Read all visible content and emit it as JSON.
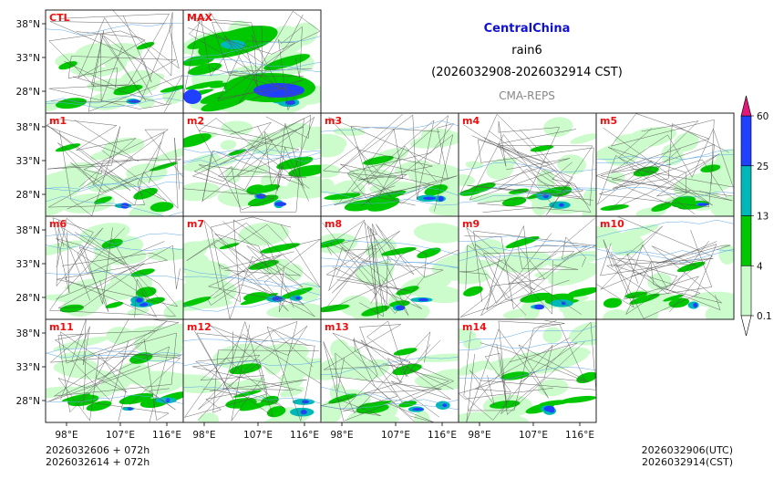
{
  "header": {
    "region": "CentralChina",
    "variable": "rain6",
    "period": "(2026032908-2026032914 CST)",
    "model": "CMA-REPS"
  },
  "panels": [
    {
      "label": "CTL",
      "intensity": 0.45
    },
    {
      "label": "MAX",
      "intensity": 1.0
    },
    {
      "label": "m1",
      "intensity": 0.35
    },
    {
      "label": "m2",
      "intensity": 0.8
    },
    {
      "label": "m3",
      "intensity": 0.75
    },
    {
      "label": "m4",
      "intensity": 0.6
    },
    {
      "label": "m5",
      "intensity": 0.45
    },
    {
      "label": "m6",
      "intensity": 0.55
    },
    {
      "label": "m7",
      "intensity": 0.7
    },
    {
      "label": "m8",
      "intensity": 0.6
    },
    {
      "label": "m9",
      "intensity": 0.55
    },
    {
      "label": "m10",
      "intensity": 0.45
    },
    {
      "label": "m11",
      "intensity": 0.6
    },
    {
      "label": "m12",
      "intensity": 0.5
    },
    {
      "label": "m13",
      "intensity": 0.6
    },
    {
      "label": "m14",
      "intensity": 0.55
    }
  ],
  "axes": {
    "lat_labels": [
      "38°N",
      "33°N",
      "28°N"
    ],
    "lon_labels": [
      "98°E",
      "107°E",
      "116°E"
    ]
  },
  "colorbar": {
    "levels": [
      "0.1",
      "4",
      "13",
      "25",
      "60"
    ],
    "colors": [
      "#ccfbcc",
      "#00c800",
      "#00b8b8",
      "#2040ff"
    ],
    "over_color": "#e0187a"
  },
  "colors": {
    "light": "#ccfbcc",
    "green": "#00c800",
    "cyan": "#00b8b8",
    "blue": "#2040ff",
    "label": "#ee1010",
    "river": "#5ea8e8",
    "border": "#222222"
  },
  "footer": {
    "left_line1": "2026032606  +  072h",
    "left_line2": "2026032614  +  072h",
    "right_line1": "2026032906(UTC)",
    "right_line2": "2026032914(CST)"
  }
}
